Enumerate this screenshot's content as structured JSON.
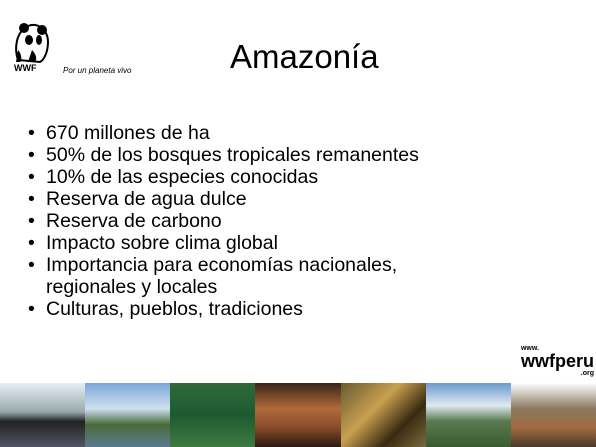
{
  "header": {
    "logo": "WWF",
    "tagline": "Por un planeta vivo",
    "title": "Amazonía"
  },
  "bullets": [
    "670 millones de ha",
    "50% de los bosques tropicales remanentes",
    "10% de las especies conocidas",
    "Reserva de agua dulce",
    "Reserva de carbono",
    "Impacto sobre clima global",
    "Importancia para economías nacionales, regionales y locales",
    "Culturas, pueblos, tradiciones"
  ],
  "site": {
    "prefix": "www.",
    "name": "wwfperu",
    "suffix": ".org"
  }
}
